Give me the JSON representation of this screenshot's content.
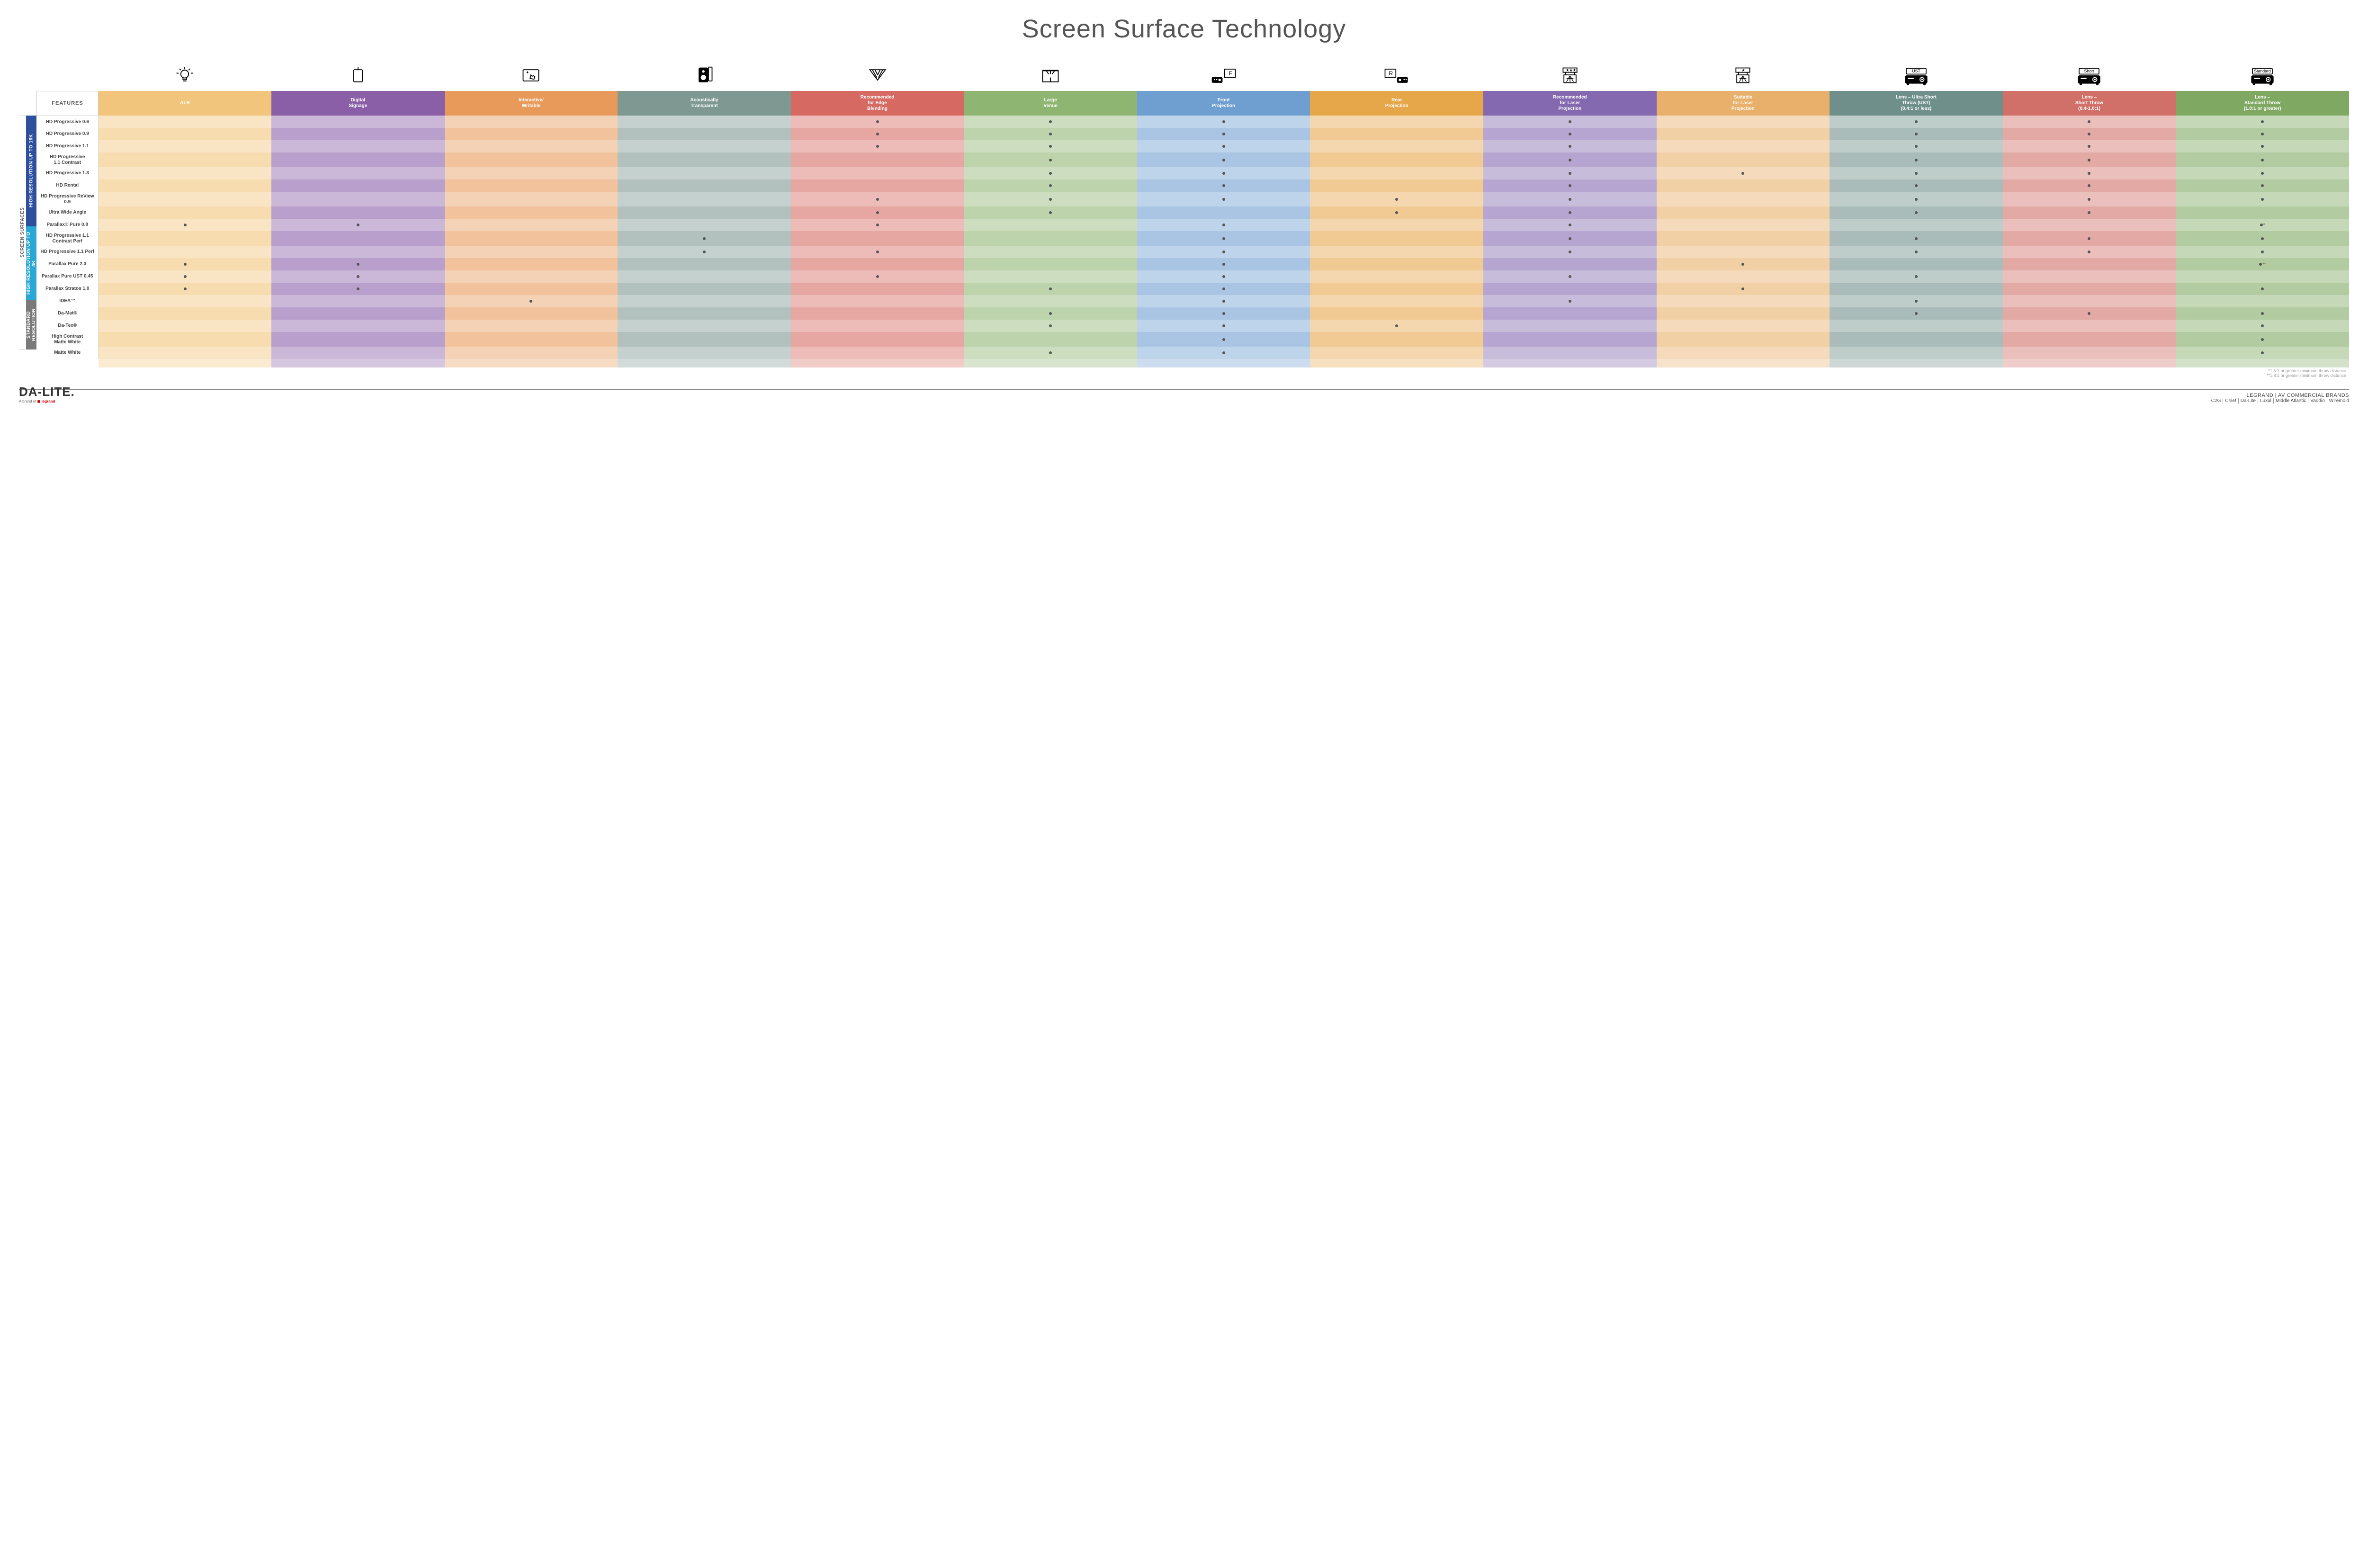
{
  "title": "Screen Surface Technology",
  "features_header": "FEATURES",
  "columns": [
    {
      "key": "alr",
      "label": "ALR",
      "colors": [
        "#f2c57c",
        "#f7d9a3"
      ],
      "icon": "bulb"
    },
    {
      "key": "signage",
      "label": "Digital\nSignage",
      "colors": [
        "#8b5fa8",
        "#b096c6"
      ],
      "icon": "signage"
    },
    {
      "key": "writable",
      "label": "Interactive/\nWritable",
      "colors": [
        "#e79a5a",
        "#f2c19d"
      ],
      "icon": "touch"
    },
    {
      "key": "acoustic",
      "label": "Acoustically\nTransparent",
      "colors": [
        "#7f9892",
        "#aebbb6"
      ],
      "icon": "speaker"
    },
    {
      "key": "edge",
      "label": "Recommended\nfor Edge\nBlending",
      "colors": [
        "#d66a63",
        "#e9a39d"
      ],
      "icon": "blend"
    },
    {
      "key": "venue",
      "label": "Large\nVenue",
      "colors": [
        "#8fb573",
        "#b9d0a6"
      ],
      "icon": "venue"
    },
    {
      "key": "front",
      "label": "Front\nProjection",
      "colors": [
        "#6f9fd1",
        "#a9c4e3"
      ],
      "icon": "front"
    },
    {
      "key": "rear",
      "label": "Rear\nProjection",
      "colors": [
        "#e6a74a",
        "#f1ca91"
      ],
      "icon": "rear"
    },
    {
      "key": "reclaser",
      "label": "Recommended\nfor Laser\nProjection",
      "colors": [
        "#8469b0",
        "#b3a3cf"
      ],
      "icon": "laser3"
    },
    {
      "key": "suitlaser",
      "label": "Suitable\nfor Laser\nProjection",
      "colors": [
        "#e8b06a",
        "#f3d3a7"
      ],
      "icon": "laser1"
    },
    {
      "key": "ust",
      "label": "Lens – Ultra Short\nThrow (UST)\n(0.4:1 or less)",
      "colors": [
        "#6f8f8a",
        "#a6b9b5"
      ],
      "icon": "proj-ust"
    },
    {
      "key": "short",
      "label": "Lens –\nShort Throw\n(0.4-1.0:1)",
      "colors": [
        "#d17069",
        "#e6a6a0"
      ],
      "icon": "proj-short"
    },
    {
      "key": "std",
      "label": "Lens –\nStandard Throw\n(1.0:1 or greater)",
      "colors": [
        "#7fa862",
        "#b0c99d"
      ],
      "icon": "proj-std"
    }
  ],
  "side_outer": "SCREEN SURFACES",
  "groups": [
    {
      "label": "HIGH RESOLUTION UP TO 16K",
      "color": "#2d4f9e",
      "rows": [
        {
          "label": "HD Progressive 0.6",
          "dots": {
            "edge": "",
            "venue": "",
            "front": "",
            "reclaser": "",
            "ust": "",
            "short": "",
            "std": ""
          }
        },
        {
          "label": "HD Progressive 0.9",
          "dots": {
            "edge": "",
            "venue": "",
            "front": "",
            "reclaser": "",
            "ust": "",
            "short": "",
            "std": ""
          }
        },
        {
          "label": "HD Progressive 1.1",
          "dots": {
            "edge": "",
            "venue": "",
            "front": "",
            "reclaser": "",
            "ust": "",
            "short": "",
            "std": ""
          }
        },
        {
          "label": "HD Progressive\n1.1 Contrast",
          "dots": {
            "venue": "",
            "front": "",
            "reclaser": "",
            "ust": "",
            "short": "",
            "std": ""
          }
        },
        {
          "label": "HD Progressive 1.3",
          "dots": {
            "venue": "",
            "front": "",
            "reclaser": "",
            "suitlaser": "",
            "ust": "",
            "short": "",
            "std": ""
          }
        },
        {
          "label": "HD Rental",
          "dots": {
            "venue": "",
            "front": "",
            "reclaser": "",
            "ust": "",
            "short": "",
            "std": ""
          }
        },
        {
          "label": "HD Progressive ReView 0.9",
          "dots": {
            "edge": "",
            "venue": "",
            "front": "",
            "rear": "",
            "reclaser": "",
            "ust": "",
            "short": "",
            "std": ""
          }
        },
        {
          "label": "Ultra Wide Angle",
          "dots": {
            "edge": "",
            "venue": "",
            "rear": "",
            "reclaser": "",
            "ust": "",
            "short": ""
          }
        },
        {
          "label": "Parallax® Pure 0.8",
          "dots": {
            "alr": "",
            "signage": "",
            "edge": "",
            "front": "",
            "reclaser": "",
            "std": "*"
          }
        }
      ]
    },
    {
      "label": "HIGH RESOLUTION UP TO 4K",
      "color": "#2aa7d4",
      "rows": [
        {
          "label": "HD Progressive 1.1\nContrast Perf",
          "dots": {
            "acoustic": "",
            "front": "",
            "reclaser": "",
            "ust": "",
            "short": "",
            "std": ""
          }
        },
        {
          "label": "HD Progressive 1.1 Perf",
          "dots": {
            "acoustic": "",
            "edge": "",
            "front": "",
            "reclaser": "",
            "ust": "",
            "short": "",
            "std": ""
          }
        },
        {
          "label": "Parallax Pure 2.3",
          "dots": {
            "alr": "",
            "signage": "",
            "front": "",
            "suitlaser": "",
            "std": "**"
          }
        },
        {
          "label": "Parallax Pure UST 0.45",
          "dots": {
            "alr": "",
            "signage": "",
            "edge": "",
            "front": "",
            "reclaser": "",
            "ust": ""
          }
        },
        {
          "label": "Parallax Stratos 1.0",
          "dots": {
            "alr": "",
            "signage": "",
            "venue": "",
            "front": "",
            "suitlaser": "",
            "std": ""
          }
        },
        {
          "label": "IDEA™",
          "dots": {
            "writable": "",
            "front": "",
            "reclaser": "",
            "ust": ""
          }
        }
      ]
    },
    {
      "label": "STANDARD\nRESOLUTION",
      "color": "#7a7a7a",
      "rows": [
        {
          "label": "Da-Mat®",
          "dots": {
            "venue": "",
            "front": "",
            "ust": "",
            "short": "",
            "std": ""
          }
        },
        {
          "label": "Da-Tex®",
          "dots": {
            "venue": "",
            "front": "",
            "rear": "",
            "std": ""
          }
        },
        {
          "label": "High Contrast\nMatte White",
          "dots": {
            "front": "",
            "std": ""
          }
        },
        {
          "label": "Matte White",
          "dots": {
            "venue": "",
            "front": "",
            "std": ""
          }
        }
      ]
    }
  ],
  "footnotes": [
    "*1.5:1 or greater minimum throw distance",
    "**1.8:1 or greater minimum throw distance"
  ],
  "footer": {
    "logo_main": "DA-LITE.",
    "logo_sub_prefix": "A brand of ",
    "logo_sub_brand": "legrand",
    "right_top": "LEGRAND | AV COMMERCIAL BRANDS",
    "brands": [
      "C2G",
      "Chief",
      "Da-Lite",
      "Luxul",
      "Middle Atlantic",
      "Vaddio",
      "Wiremold"
    ]
  }
}
